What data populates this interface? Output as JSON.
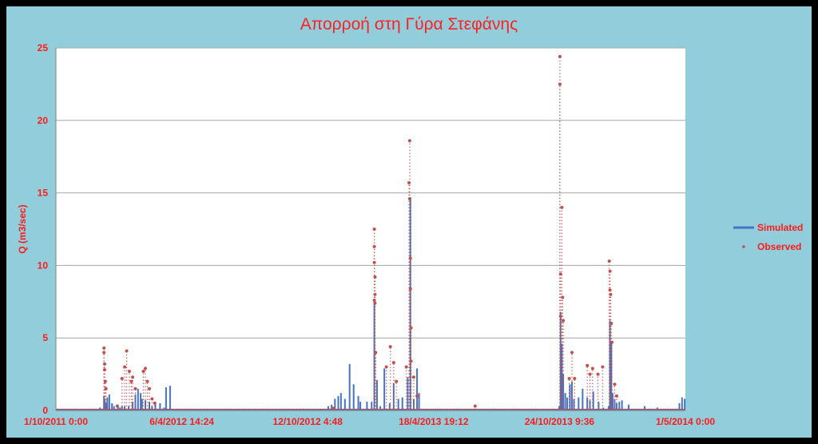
{
  "chart_data": {
    "type": "line",
    "title": "Απορροή στη Γύρα Στεφάνης",
    "xlabel": "",
    "ylabel": "Q (m3/sec)",
    "ylim": [
      0,
      25
    ],
    "yticks": [
      "0",
      "5",
      "10",
      "15",
      "20",
      "25"
    ],
    "xlim": [
      "1/10/2011 0:00",
      "1/5/2014 0:00"
    ],
    "xticks": [
      "1/10/2011 0:00",
      "6/4/2012 14:24",
      "12/10/2012 4:48",
      "18/4/2013 19:12",
      "24/10/2013 9:36",
      "1/5/2014 0:00"
    ],
    "grid": true,
    "legend_position": "right",
    "colors": {
      "simulated": "#4472c4",
      "observed": "#c0504d",
      "background": "#92cddc",
      "plot": "#ffffff"
    },
    "series": [
      {
        "name": "Simulated",
        "style": "line",
        "x": [
          "2011-12-06",
          "2011-12-12",
          "2011-12-13",
          "2011-12-15",
          "2011-12-17",
          "2011-12-20",
          "2011-12-24",
          "2011-12-27",
          "2012-01-02",
          "2012-01-05",
          "2012-01-08",
          "2012-01-12",
          "2012-01-18",
          "2012-01-24",
          "2012-01-28",
          "2012-02-01",
          "2012-02-05",
          "2012-02-07",
          "2012-02-12",
          "2012-02-18",
          "2012-02-22",
          "2012-02-27",
          "2012-03-05",
          "2012-03-11",
          "2012-03-14",
          "2012-03-20",
          "2012-04-26",
          "2012-05-05",
          "2012-10-12",
          "2012-11-12",
          "2012-11-17",
          "2012-11-22",
          "2012-11-27",
          "2012-12-01",
          "2012-12-07",
          "2012-12-14",
          "2012-12-20",
          "2012-12-27",
          "2012-12-30",
          "2013-01-09",
          "2013-01-16",
          "2013-01-20",
          "2013-01-24",
          "2013-01-29",
          "2013-02-04",
          "2013-02-12",
          "2013-02-18",
          "2013-02-25",
          "2013-03-03",
          "2013-03-11",
          "2013-03-15",
          "2013-03-20",
          "2013-03-25",
          "2013-03-28",
          "2013-04-04",
          "2013-10-01",
          "2013-10-24",
          "2013-10-26",
          "2013-10-28",
          "2013-10-30",
          "2013-11-02",
          "2013-11-05",
          "2013-11-09",
          "2013-11-12",
          "2013-11-15",
          "2013-11-22",
          "2013-11-28",
          "2013-12-05",
          "2013-12-09",
          "2013-12-14",
          "2013-12-22",
          "2013-12-29",
          "2014-01-06",
          "2014-01-08",
          "2014-01-10",
          "2014-01-12",
          "2014-01-15",
          "2014-01-18",
          "2014-01-22",
          "2014-01-26",
          "2014-02-05",
          "2014-03-01",
          "2014-03-20",
          "2014-04-22",
          "2014-04-26",
          "2014-04-30"
        ],
        "y": [
          0.2,
          1.0,
          0.8,
          0.5,
          0.9,
          1.1,
          0.5,
          0.3,
          0.3,
          0.2,
          0.3,
          0.3,
          0.3,
          0.6,
          1.1,
          1.5,
          1.2,
          0.8,
          0.7,
          0.6,
          0.3,
          0.5,
          0.5,
          0.2,
          1.6,
          1.7,
          0.1,
          0.05,
          0.05,
          0.3,
          0.4,
          0.8,
          1.0,
          1.2,
          0.8,
          3.2,
          1.8,
          1.0,
          0.6,
          0.6,
          0.6,
          7.5,
          2.1,
          0.3,
          2.9,
          0.5,
          1.9,
          0.8,
          0.9,
          2.3,
          14.7,
          0.8,
          2.9,
          1.2,
          0.1,
          0.05,
          0.3,
          6.8,
          4.6,
          2.5,
          1.2,
          0.9,
          1.8,
          2.0,
          0.8,
          0.9,
          1.5,
          0.9,
          0.7,
          1.3,
          0.6,
          0.2,
          0.3,
          6.2,
          4.7,
          1.2,
          0.8,
          0.5,
          0.6,
          0.7,
          0.4,
          0.3,
          0.2,
          0.5,
          0.9,
          0.8
        ]
      },
      {
        "name": "Observed",
        "style": "markers",
        "x": [
          "2011-12-12",
          "2011-12-12",
          "2011-12-13",
          "2011-12-13",
          "2011-12-14",
          "2011-12-15",
          "2012-01-01",
          "2012-01-08",
          "2012-01-12",
          "2012-01-15",
          "2012-01-19",
          "2012-01-22",
          "2012-01-24",
          "2012-01-28",
          "2012-02-09",
          "2012-02-12",
          "2012-02-15",
          "2012-02-18",
          "2012-02-22",
          "2012-02-26",
          "2012-11-20",
          "2013-01-20",
          "2013-01-20",
          "2013-01-20",
          "2013-01-20",
          "2013-01-21",
          "2013-01-21",
          "2013-01-21",
          "2013-01-22",
          "2013-02-07",
          "2013-02-13",
          "2013-02-18",
          "2013-02-22",
          "2013-03-09",
          "2013-03-13",
          "2013-03-14",
          "2013-03-14",
          "2013-03-15",
          "2013-03-15",
          "2013-03-16",
          "2013-03-16",
          "2013-03-20",
          "2013-03-25",
          "2013-06-20",
          "2013-10-25",
          "2013-10-25",
          "2013-10-26",
          "2013-10-26",
          "2013-10-28",
          "2013-10-29",
          "2013-10-30",
          "2013-11-08",
          "2013-11-12",
          "2013-11-16",
          "2013-12-05",
          "2013-12-09",
          "2013-12-13",
          "2013-12-21",
          "2013-12-28",
          "2014-01-07",
          "2014-01-08",
          "2014-01-08",
          "2014-01-09",
          "2014-01-10",
          "2014-01-11",
          "2014-01-15",
          "2014-01-18"
        ],
        "y": [
          4.0,
          4.3,
          3.2,
          2.8,
          2.0,
          1.5,
          0.3,
          2.2,
          3.0,
          4.1,
          2.7,
          2.0,
          2.3,
          1.5,
          2.7,
          2.9,
          2.0,
          1.5,
          0.8,
          0.5,
          0.15,
          7.6,
          12.5,
          11.3,
          10.2,
          9.2,
          8.0,
          7.4,
          4.0,
          3.0,
          4.4,
          3.3,
          2.0,
          3.0,
          15.7,
          18.6,
          14.6,
          10.5,
          8.4,
          5.7,
          3.4,
          2.3,
          1.0,
          0.3,
          24.4,
          22.5,
          9.4,
          6.5,
          14.0,
          7.8,
          6.2,
          2.2,
          4.0,
          2.2,
          3.1,
          2.5,
          2.9,
          2.5,
          3.0,
          10.3,
          9.6,
          8.3,
          8.0,
          6.0,
          4.7,
          1.8,
          1.0
        ]
      }
    ]
  }
}
